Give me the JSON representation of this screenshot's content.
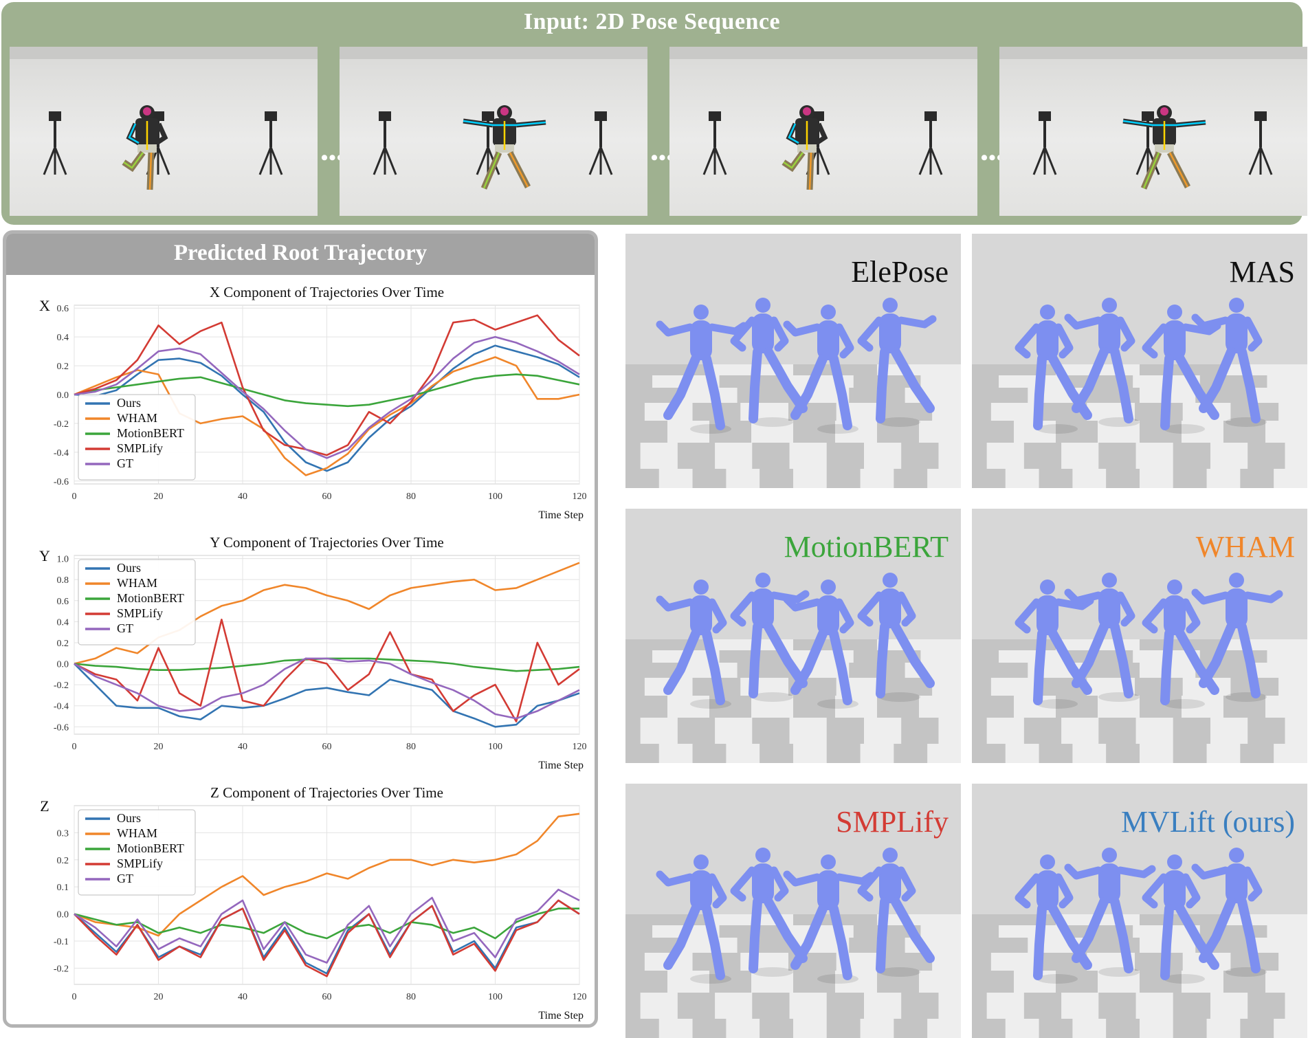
{
  "banner": {
    "title": "Input: 2D Pose Sequence",
    "ellipsis": "•••",
    "frames": [
      {
        "pose": "one-leg-raised"
      },
      {
        "pose": "arms-spread"
      },
      {
        "pose": "one-leg-raised"
      },
      {
        "pose": "arms-spread"
      }
    ]
  },
  "trajectory_panel": {
    "title": "Predicted Root Trajectory"
  },
  "chart_data": [
    {
      "type": "line",
      "title": "X Component of Trajectories Over Time",
      "ylabel": "X",
      "xlabel": "Time Step",
      "xlim": [
        0,
        120
      ],
      "ylim": [
        -0.62,
        0.62
      ],
      "xticks": [
        0,
        20,
        40,
        60,
        80,
        100,
        120
      ],
      "yticks": [
        -0.6,
        -0.4,
        -0.2,
        0.0,
        0.2,
        0.4,
        0.6
      ],
      "ytick_labels": [
        "-0.6",
        "-0.4",
        "-0.2",
        "0.0",
        "0.2",
        "0.4",
        "0.6"
      ],
      "grid": true,
      "legend_position": "lower-left",
      "x": [
        0,
        5,
        10,
        15,
        20,
        25,
        30,
        35,
        40,
        45,
        50,
        55,
        60,
        65,
        70,
        75,
        80,
        85,
        90,
        95,
        100,
        105,
        110,
        115,
        120
      ],
      "series": [
        {
          "name": "Ours",
          "color": "#3274b2",
          "values": [
            0,
            -0.01,
            0.03,
            0.14,
            0.24,
            0.25,
            0.22,
            0.13,
            0.0,
            -0.12,
            -0.33,
            -0.47,
            -0.53,
            -0.47,
            -0.3,
            -0.17,
            -0.08,
            0.05,
            0.18,
            0.28,
            0.34,
            0.3,
            0.26,
            0.21,
            0.12
          ]
        },
        {
          "name": "WHAM",
          "color": "#f0862a",
          "values": [
            0,
            0.06,
            0.12,
            0.17,
            0.14,
            -0.13,
            -0.2,
            -0.17,
            -0.15,
            -0.24,
            -0.44,
            -0.56,
            -0.51,
            -0.41,
            -0.24,
            -0.14,
            -0.06,
            0.06,
            0.16,
            0.21,
            0.26,
            0.2,
            -0.03,
            -0.03,
            0.0
          ]
        },
        {
          "name": "MotionBERT",
          "color": "#3ba53b",
          "values": [
            0,
            0.03,
            0.05,
            0.07,
            0.09,
            0.11,
            0.12,
            0.08,
            0.04,
            0.0,
            -0.04,
            -0.06,
            -0.07,
            -0.08,
            -0.07,
            -0.04,
            -0.01,
            0.03,
            0.07,
            0.11,
            0.13,
            0.14,
            0.13,
            0.1,
            0.07
          ]
        },
        {
          "name": "SMPLify",
          "color": "#d33b34",
          "values": [
            0,
            0.04,
            0.1,
            0.24,
            0.48,
            0.35,
            0.44,
            0.5,
            0.05,
            -0.25,
            -0.35,
            -0.38,
            -0.42,
            -0.35,
            -0.12,
            -0.2,
            -0.05,
            0.15,
            0.5,
            0.52,
            0.45,
            0.5,
            0.55,
            0.38,
            0.27
          ]
        },
        {
          "name": "GT",
          "color": "#9467bd",
          "values": [
            0,
            0.02,
            0.07,
            0.18,
            0.3,
            0.32,
            0.28,
            0.15,
            0.02,
            -0.1,
            -0.25,
            -0.38,
            -0.44,
            -0.38,
            -0.23,
            -0.12,
            -0.03,
            0.1,
            0.25,
            0.36,
            0.4,
            0.36,
            0.3,
            0.23,
            0.14
          ]
        }
      ]
    },
    {
      "type": "line",
      "title": "Y Component of Trajectories Over Time",
      "ylabel": "Y",
      "xlabel": "Time Step",
      "xlim": [
        0,
        120
      ],
      "ylim": [
        -0.67,
        1.03
      ],
      "xticks": [
        0,
        20,
        40,
        60,
        80,
        100,
        120
      ],
      "yticks": [
        -0.6,
        -0.4,
        -0.2,
        0.0,
        0.2,
        0.4,
        0.6,
        0.8,
        1.0
      ],
      "ytick_labels": [
        "-0.6",
        "-0.4",
        "-0.2",
        "0.0",
        "0.2",
        "0.4",
        "0.6",
        "0.8",
        "1.0"
      ],
      "grid": true,
      "legend_position": "upper-left",
      "x": [
        0,
        5,
        10,
        15,
        20,
        25,
        30,
        35,
        40,
        45,
        50,
        55,
        60,
        65,
        70,
        75,
        80,
        85,
        90,
        95,
        100,
        105,
        110,
        115,
        120
      ],
      "series": [
        {
          "name": "Ours",
          "color": "#3274b2",
          "values": [
            0,
            -0.2,
            -0.4,
            -0.42,
            -0.42,
            -0.5,
            -0.53,
            -0.4,
            -0.42,
            -0.4,
            -0.33,
            -0.25,
            -0.23,
            -0.27,
            -0.3,
            -0.15,
            -0.2,
            -0.25,
            -0.45,
            -0.52,
            -0.6,
            -0.58,
            -0.4,
            -0.35,
            -0.28
          ]
        },
        {
          "name": "WHAM",
          "color": "#f0862a",
          "values": [
            0,
            0.05,
            0.15,
            0.1,
            0.25,
            0.32,
            0.45,
            0.55,
            0.6,
            0.7,
            0.75,
            0.72,
            0.65,
            0.6,
            0.52,
            0.65,
            0.72,
            0.75,
            0.78,
            0.8,
            0.7,
            0.72,
            0.8,
            0.88,
            0.96
          ]
        },
        {
          "name": "MotionBERT",
          "color": "#3ba53b",
          "values": [
            0,
            -0.02,
            -0.03,
            -0.05,
            -0.06,
            -0.06,
            -0.05,
            -0.04,
            -0.02,
            0.0,
            0.03,
            0.04,
            0.05,
            0.05,
            0.05,
            0.04,
            0.03,
            0.02,
            0.0,
            -0.03,
            -0.05,
            -0.07,
            -0.06,
            -0.05,
            -0.03
          ]
        },
        {
          "name": "SMPLify",
          "color": "#d33b34",
          "values": [
            0,
            -0.1,
            -0.15,
            -0.35,
            0.15,
            -0.28,
            -0.4,
            0.42,
            -0.35,
            -0.4,
            -0.15,
            0.05,
            0.0,
            -0.25,
            -0.1,
            0.3,
            -0.1,
            -0.15,
            -0.45,
            -0.3,
            -0.2,
            -0.55,
            0.2,
            -0.2,
            -0.05
          ]
        },
        {
          "name": "GT",
          "color": "#9467bd",
          "values": [
            0,
            -0.12,
            -0.2,
            -0.28,
            -0.4,
            -0.45,
            -0.43,
            -0.32,
            -0.28,
            -0.2,
            -0.05,
            0.05,
            0.05,
            0.02,
            0.03,
            0.0,
            -0.1,
            -0.18,
            -0.25,
            -0.35,
            -0.48,
            -0.52,
            -0.45,
            -0.35,
            -0.25
          ]
        }
      ]
    },
    {
      "type": "line",
      "title": "Z Component of Trajectories Over Time",
      "ylabel": "Z",
      "xlabel": "Time Step",
      "xlim": [
        0,
        120
      ],
      "ylim": [
        -0.26,
        0.4
      ],
      "xticks": [
        0,
        20,
        40,
        60,
        80,
        100,
        120
      ],
      "yticks": [
        -0.2,
        -0.1,
        0.0,
        0.1,
        0.2,
        0.3
      ],
      "ytick_labels": [
        "-0.2",
        "-0.1",
        "0.0",
        "0.1",
        "0.2",
        "0.3"
      ],
      "grid": true,
      "legend_position": "upper-left",
      "x": [
        0,
        5,
        10,
        15,
        20,
        25,
        30,
        35,
        40,
        45,
        50,
        55,
        60,
        65,
        70,
        75,
        80,
        85,
        90,
        95,
        100,
        105,
        110,
        115,
        120
      ],
      "series": [
        {
          "name": "Ours",
          "color": "#3274b2",
          "values": [
            0,
            -0.07,
            -0.14,
            -0.04,
            -0.16,
            -0.12,
            -0.15,
            -0.02,
            0.02,
            -0.16,
            -0.05,
            -0.18,
            -0.22,
            -0.06,
            0.0,
            -0.15,
            -0.03,
            0.03,
            -0.14,
            -0.1,
            -0.2,
            -0.05,
            -0.03,
            0.05,
            0.0
          ]
        },
        {
          "name": "WHAM",
          "color": "#f0862a",
          "values": [
            0,
            -0.03,
            -0.04,
            -0.05,
            -0.08,
            0.0,
            0.05,
            0.1,
            0.14,
            0.07,
            0.1,
            0.12,
            0.15,
            0.13,
            0.17,
            0.2,
            0.2,
            0.18,
            0.2,
            0.19,
            0.2,
            0.22,
            0.27,
            0.36,
            0.37
          ]
        },
        {
          "name": "MotionBERT",
          "color": "#3ba53b",
          "values": [
            0,
            -0.02,
            -0.04,
            -0.03,
            -0.07,
            -0.05,
            -0.07,
            -0.04,
            -0.05,
            -0.07,
            -0.03,
            -0.07,
            -0.09,
            -0.05,
            -0.04,
            -0.07,
            -0.03,
            -0.04,
            -0.07,
            -0.05,
            -0.09,
            -0.03,
            0.0,
            0.02,
            0.02
          ]
        },
        {
          "name": "SMPLify",
          "color": "#d33b34",
          "values": [
            0,
            -0.08,
            -0.15,
            -0.04,
            -0.17,
            -0.12,
            -0.16,
            -0.02,
            0.02,
            -0.17,
            -0.06,
            -0.19,
            -0.23,
            -0.07,
            0.0,
            -0.16,
            -0.03,
            0.03,
            -0.15,
            -0.11,
            -0.21,
            -0.06,
            -0.03,
            0.05,
            0.0
          ]
        },
        {
          "name": "GT",
          "color": "#9467bd",
          "values": [
            0,
            -0.05,
            -0.12,
            -0.02,
            -0.13,
            -0.09,
            -0.12,
            0.0,
            0.05,
            -0.13,
            -0.03,
            -0.15,
            -0.18,
            -0.04,
            0.03,
            -0.12,
            0.0,
            0.06,
            -0.1,
            -0.07,
            -0.16,
            -0.02,
            0.01,
            0.09,
            0.05
          ]
        }
      ]
    }
  ],
  "renders": [
    {
      "label": "ElePose",
      "color": "#111111"
    },
    {
      "label": "MAS",
      "color": "#111111"
    },
    {
      "label": "MotionBERT",
      "color": "#3ba53b"
    },
    {
      "label": "WHAM",
      "color": "#f0862a"
    },
    {
      "label": "SMPLify",
      "color": "#d33b34"
    },
    {
      "label": "MVLift (ours)",
      "color": "#3a7fc0"
    }
  ],
  "colors": {
    "banner_bg": "#9fb190",
    "panel_header_bg": "#a3a3a3",
    "mesh": "#7d8ff0"
  }
}
